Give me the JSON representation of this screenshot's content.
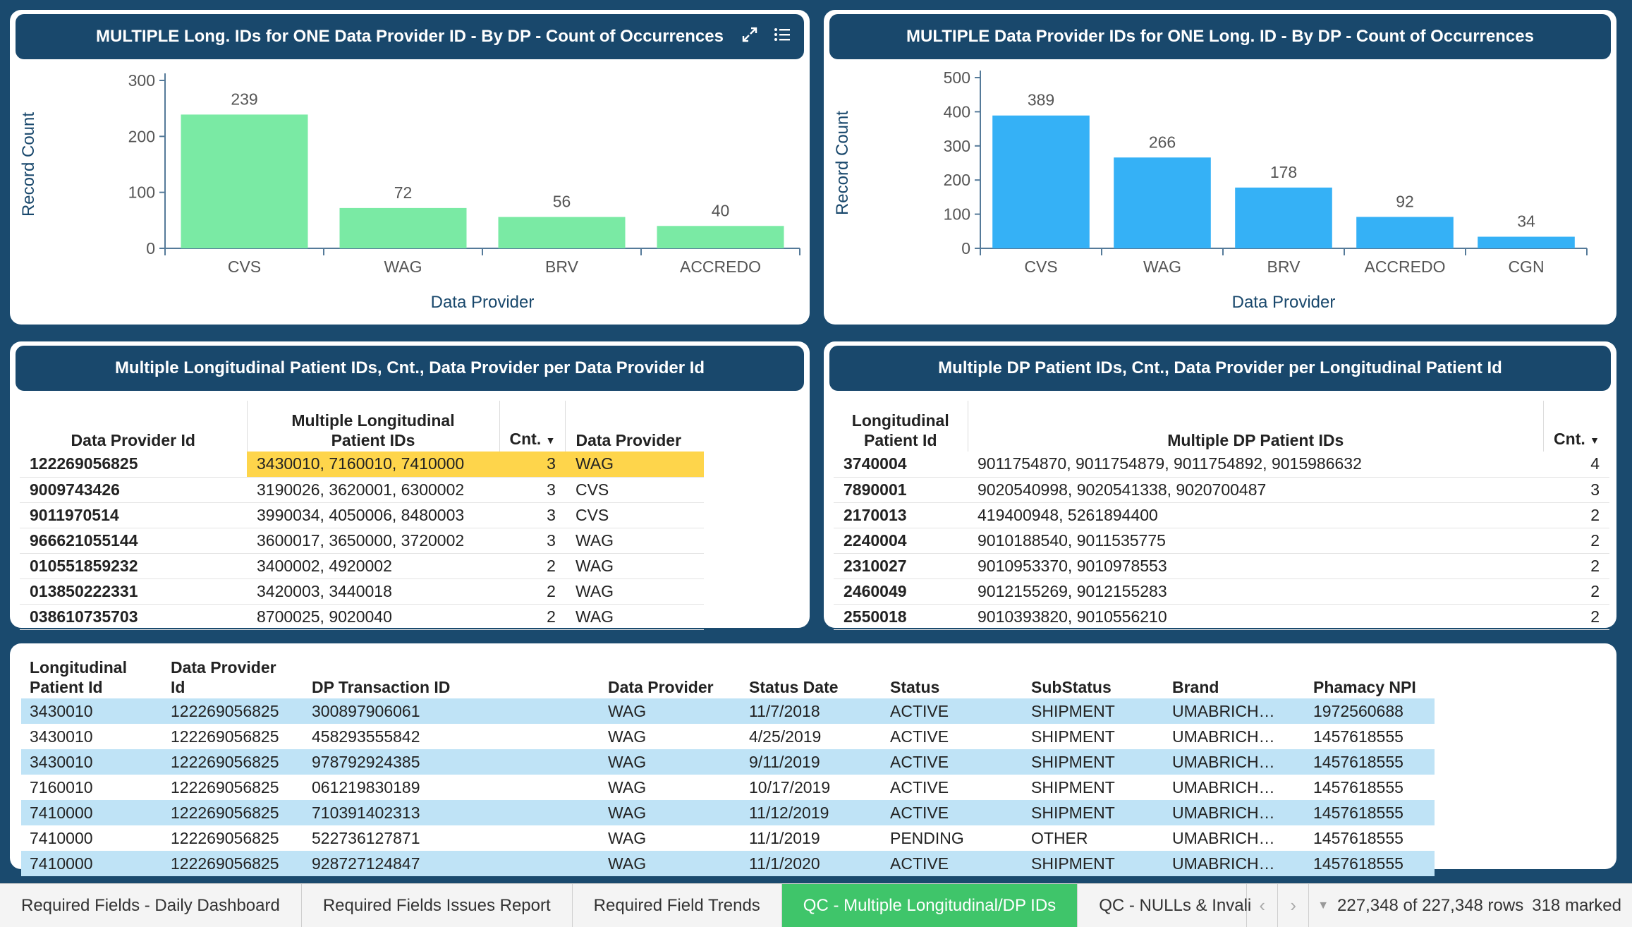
{
  "chart1": {
    "title": "MULTIPLE Long. IDs for ONE Data Provider ID - By DP - Count of Occurrences",
    "expand_icon": "expand-icon",
    "menu_icon": "list-menu-icon"
  },
  "chart2": {
    "title": "MULTIPLE Data Provider IDs for ONE Long. ID - By DP - Count of Occurrences"
  },
  "chart_data": [
    {
      "type": "bar",
      "title": "MULTIPLE Long. IDs for ONE Data Provider ID - By DP - Count of Occurrences",
      "categories": [
        "CVS",
        "WAG",
        "BRV",
        "ACCREDO"
      ],
      "values": [
        239,
        72,
        56,
        40
      ],
      "data_labels": [
        "239",
        "72",
        "56",
        "40"
      ],
      "xlabel": "Data Provider",
      "ylabel": "Record Count",
      "ylim": [
        0,
        300
      ],
      "ticks": [
        0,
        100,
        200,
        300
      ],
      "tick_labels": [
        "0",
        "100",
        "200",
        "300"
      ],
      "color": "#7aeaa4",
      "grid": false
    },
    {
      "type": "bar",
      "title": "MULTIPLE Data Provider IDs for ONE Long. ID - By DP - Count of Occurrences",
      "categories": [
        "CVS",
        "WAG",
        "BRV",
        "ACCREDO",
        "CGN"
      ],
      "values": [
        389,
        266,
        178,
        92,
        34
      ],
      "data_labels": [
        "389",
        "266",
        "178",
        "92",
        "34"
      ],
      "xlabel": "Data Provider",
      "ylabel": "Record Count",
      "ylim": [
        0,
        500
      ],
      "ticks": [
        0,
        100,
        200,
        300,
        400,
        500
      ],
      "tick_labels": [
        "0",
        "100",
        "200",
        "300",
        "400",
        "500"
      ],
      "color": "#35b1f6",
      "grid": false
    }
  ],
  "table1": {
    "title": "Multiple Longitudinal Patient IDs, Cnt., Data Provider per Data Provider Id",
    "headers": {
      "dpid": "Data Provider Id",
      "mlp1": "Multiple Longitudinal",
      "mlp2": "Patient IDs",
      "cnt": "Cnt.",
      "dp": "Data Provider"
    },
    "sort_icon": "sort-desc-icon",
    "highlight_color": "#fed54b",
    "rows": [
      {
        "id": "122269056825",
        "ids": "3430010, 7160010, 7410000",
        "cnt": "3",
        "dp": "WAG"
      },
      {
        "id": "9009743426",
        "ids": "3190026, 3620001, 6300002",
        "cnt": "3",
        "dp": "CVS"
      },
      {
        "id": "9011970514",
        "ids": "3990034, 4050006, 8480003",
        "cnt": "3",
        "dp": "CVS"
      },
      {
        "id": "966621055144",
        "ids": "3600017, 3650000, 3720002",
        "cnt": "3",
        "dp": "WAG"
      },
      {
        "id": "010551859232",
        "ids": "3400002, 4920002",
        "cnt": "2",
        "dp": "WAG"
      },
      {
        "id": "013850222331",
        "ids": "3420003, 3440018",
        "cnt": "2",
        "dp": "WAG"
      },
      {
        "id": "038610735703",
        "ids": "8700025, 9020040",
        "cnt": "2",
        "dp": "WAG"
      }
    ]
  },
  "table2": {
    "title": "Multiple DP Patient IDs, Cnt., Data Provider per Longitudinal Patient Id",
    "headers": {
      "lp1": "Longitudinal",
      "lp2": "Patient Id",
      "mdp": "Multiple DP Patient IDs",
      "cnt": "Cnt."
    },
    "rows": [
      {
        "id": "3740004",
        "ids": "9011754870, 9011754879, 9011754892, 9015986632",
        "cnt": "4"
      },
      {
        "id": "7890001",
        "ids": "9020540998, 9020541338, 9020700487",
        "cnt": "3"
      },
      {
        "id": "2170013",
        "ids": "419400948, 5261894400",
        "cnt": "2"
      },
      {
        "id": "2240004",
        "ids": "9010188540, 9011535775",
        "cnt": "2"
      },
      {
        "id": "2310027",
        "ids": "9010953370, 9010978553",
        "cnt": "2"
      },
      {
        "id": "2460049",
        "ids": "9012155269, 9012155283",
        "cnt": "2"
      },
      {
        "id": "2550018",
        "ids": "9010393820, 9010556210",
        "cnt": "2"
      }
    ]
  },
  "table3": {
    "headers": {
      "lp1": "Longitudinal",
      "lp2": "Patient Id",
      "dp1": "Data Provider",
      "dp2": "Id",
      "tx": "DP Transaction ID",
      "prov": "Data Provider",
      "date": "Status Date",
      "status": "Status",
      "sub": "SubStatus",
      "brand": "Brand",
      "npi": "Phamacy NPI"
    },
    "alt_color": "#bfe3f6",
    "rows": [
      {
        "lp": "3430010",
        "dpid": "122269056825",
        "tx": "300897906061",
        "prov": "WAG",
        "date": "11/7/2018",
        "status": "ACTIVE",
        "sub": "SHIPMENT",
        "brand": "UMABRICH…",
        "npi": "1972560688"
      },
      {
        "lp": "3430010",
        "dpid": "122269056825",
        "tx": "458293555842",
        "prov": "WAG",
        "date": "4/25/2019",
        "status": "ACTIVE",
        "sub": "SHIPMENT",
        "brand": "UMABRICH…",
        "npi": "1457618555"
      },
      {
        "lp": "3430010",
        "dpid": "122269056825",
        "tx": "978792924385",
        "prov": "WAG",
        "date": "9/11/2019",
        "status": "ACTIVE",
        "sub": "SHIPMENT",
        "brand": "UMABRICH…",
        "npi": "1457618555"
      },
      {
        "lp": "7160010",
        "dpid": "122269056825",
        "tx": "061219830189",
        "prov": "WAG",
        "date": "10/17/2019",
        "status": "ACTIVE",
        "sub": "SHIPMENT",
        "brand": "UMABRICH…",
        "npi": "1457618555"
      },
      {
        "lp": "7410000",
        "dpid": "122269056825",
        "tx": "710391402313",
        "prov": "WAG",
        "date": "11/12/2019",
        "status": "ACTIVE",
        "sub": "SHIPMENT",
        "brand": "UMABRICH…",
        "npi": "1457618555"
      },
      {
        "lp": "7410000",
        "dpid": "122269056825",
        "tx": "522736127871",
        "prov": "WAG",
        "date": "11/1/2019",
        "status": "PENDING",
        "sub": "OTHER",
        "brand": "UMABRICH…",
        "npi": "1457618555"
      },
      {
        "lp": "7410000",
        "dpid": "122269056825",
        "tx": "928727124847",
        "prov": "WAG",
        "date": "11/1/2020",
        "status": "ACTIVE",
        "sub": "SHIPMENT",
        "brand": "UMABRICH…",
        "npi": "1457618555"
      }
    ]
  },
  "tabs": {
    "items": [
      {
        "label": "Required Fields - Daily Dashboard"
      },
      {
        "label": "Required Fields Issues Report"
      },
      {
        "label": "Required Field Trends"
      },
      {
        "label": "QC - Multiple Longitudinal/DP IDs"
      },
      {
        "label": "QC - NULLs & Invali"
      }
    ],
    "active_color": "#3fc56a",
    "prev_icon": "chevron-left-icon",
    "next_icon": "chevron-right-icon",
    "dropdown_icon": "chevron-down-icon",
    "rows_text": "227,348 of 227,348 rows",
    "marked_text": "318 marked"
  }
}
